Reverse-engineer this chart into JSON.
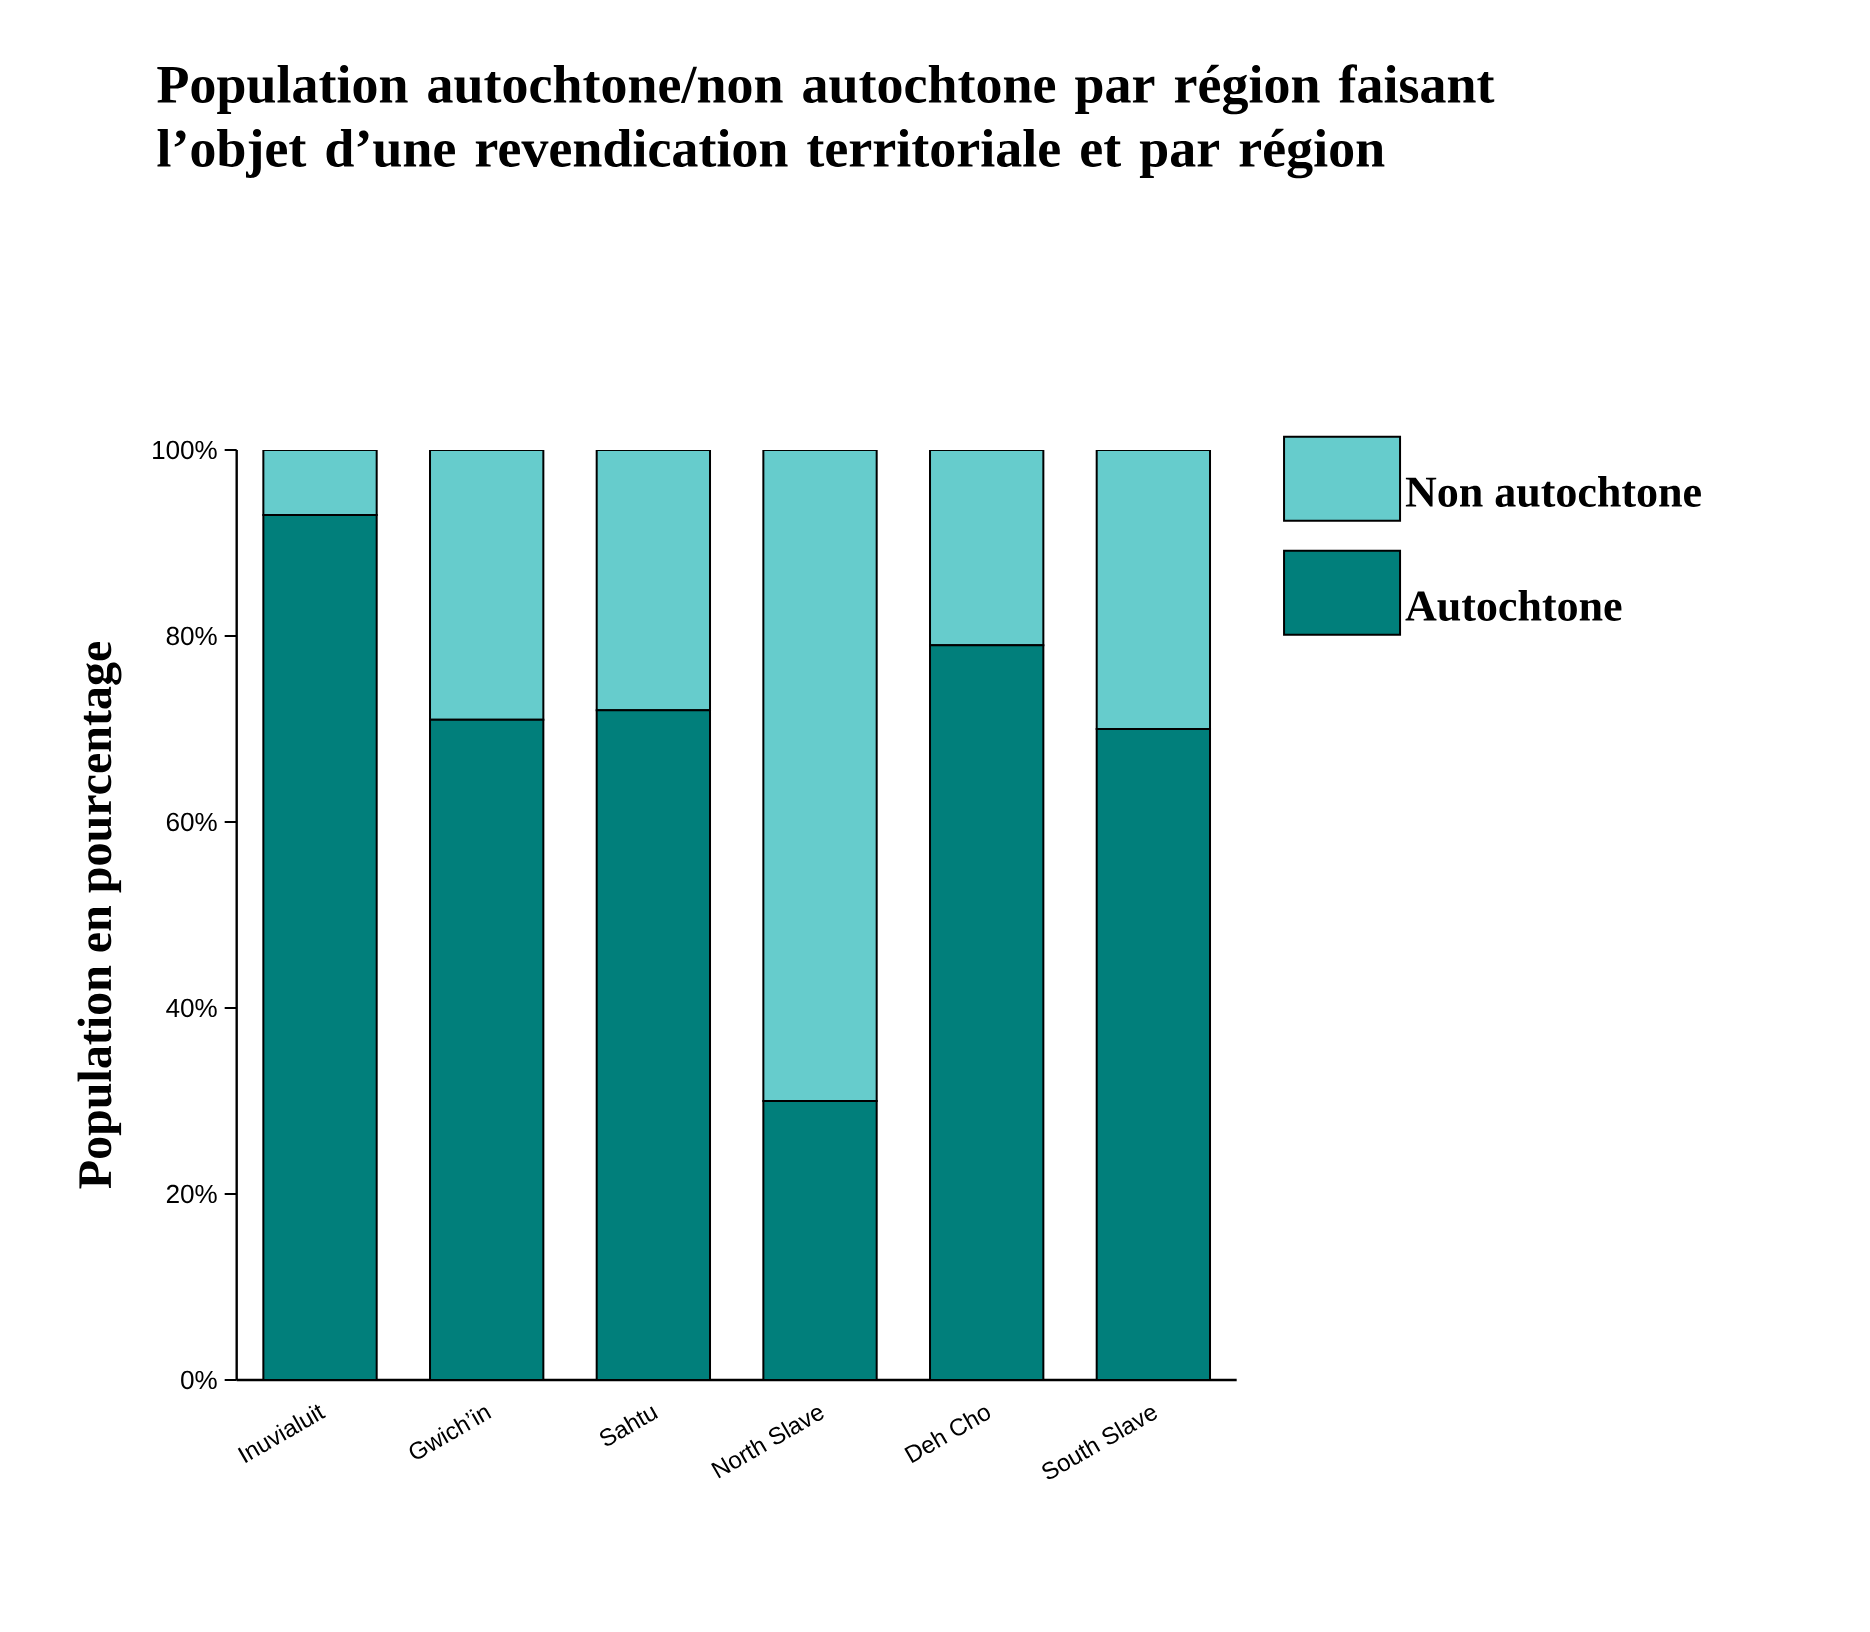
{
  "chart_data": {
    "type": "bar",
    "title": "Population autochtone/non autochtone par région faisant l’objet d’une revendication territoriale et par région",
    "ylabel": "Population en pourcentage",
    "categories": [
      "Inuvialuit",
      "Gwich’in",
      "Sahtu",
      "North Slave",
      "Deh Cho",
      "South Slave"
    ],
    "stacked": true,
    "series": [
      {
        "name": "Autochtone",
        "color": "#017f7b",
        "values": [
          93,
          71,
          72,
          30,
          79,
          70
        ]
      },
      {
        "name": "Non autochtone",
        "color": "#66cccc",
        "values": [
          7,
          29,
          28,
          70,
          21,
          30
        ]
      }
    ],
    "ylim": [
      0,
      100
    ],
    "yticks": [
      {
        "value": 0,
        "label": "0%"
      },
      {
        "value": 20,
        "label": "20%"
      },
      {
        "value": 40,
        "label": "40%"
      },
      {
        "value": 60,
        "label": "60%"
      },
      {
        "value": 80,
        "label": "80%"
      },
      {
        "value": 100,
        "label": "100%"
      }
    ],
    "legend": "right"
  }
}
